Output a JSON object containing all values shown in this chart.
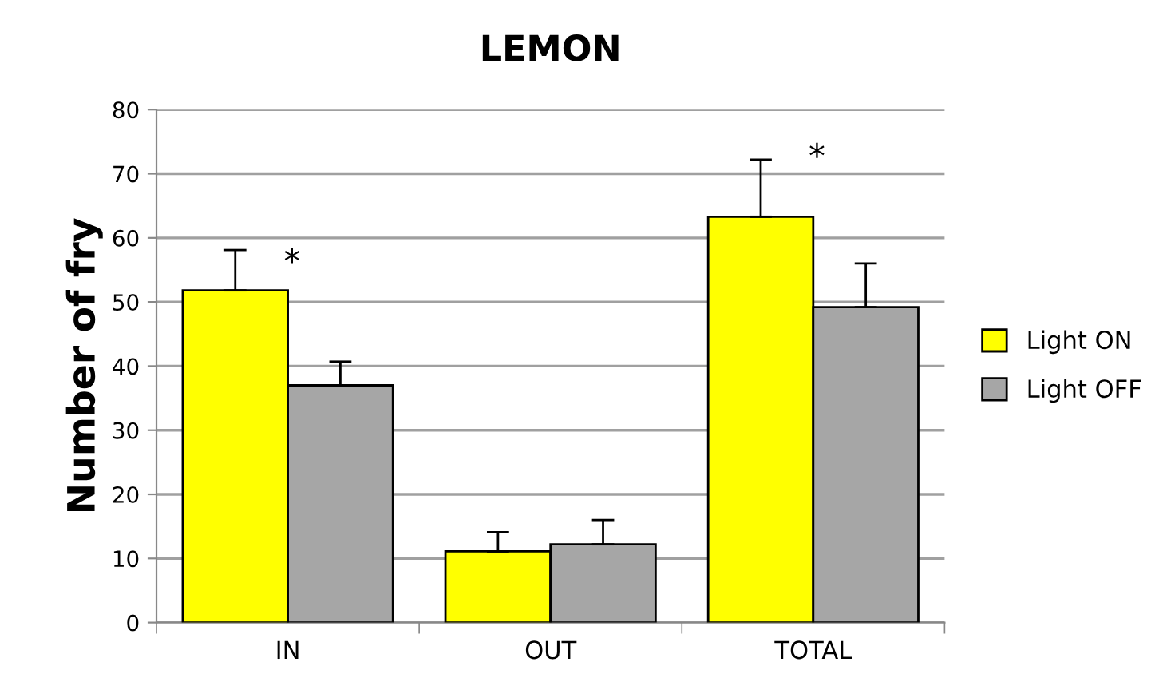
{
  "chart_data": {
    "type": "bar",
    "title": "LEMON",
    "ylabel": "Number of fry",
    "categories": [
      "IN",
      "OUT",
      "TOTAL"
    ],
    "series": [
      {
        "name": "Light ON",
        "color": "#ffff00",
        "values": [
          51.8,
          11.1,
          63.3
        ],
        "errors": [
          [
            51.8,
            58.1
          ],
          [
            11.1,
            14.1
          ],
          [
            63.3,
            72.2
          ]
        ]
      },
      {
        "name": "Light OFF",
        "color": "#a6a6a6",
        "values": [
          37.0,
          12.2,
          49.2
        ],
        "errors": [
          [
            37.0,
            40.7
          ],
          [
            12.2,
            16.0
          ],
          [
            49.2,
            56.0
          ]
        ]
      }
    ],
    "annotations": [
      "*",
      "*"
    ],
    "ylim": [
      0,
      80
    ],
    "yticks": [
      0,
      10,
      20,
      30,
      40,
      50,
      60,
      70,
      80
    ],
    "grid": "y",
    "legend": "right"
  }
}
